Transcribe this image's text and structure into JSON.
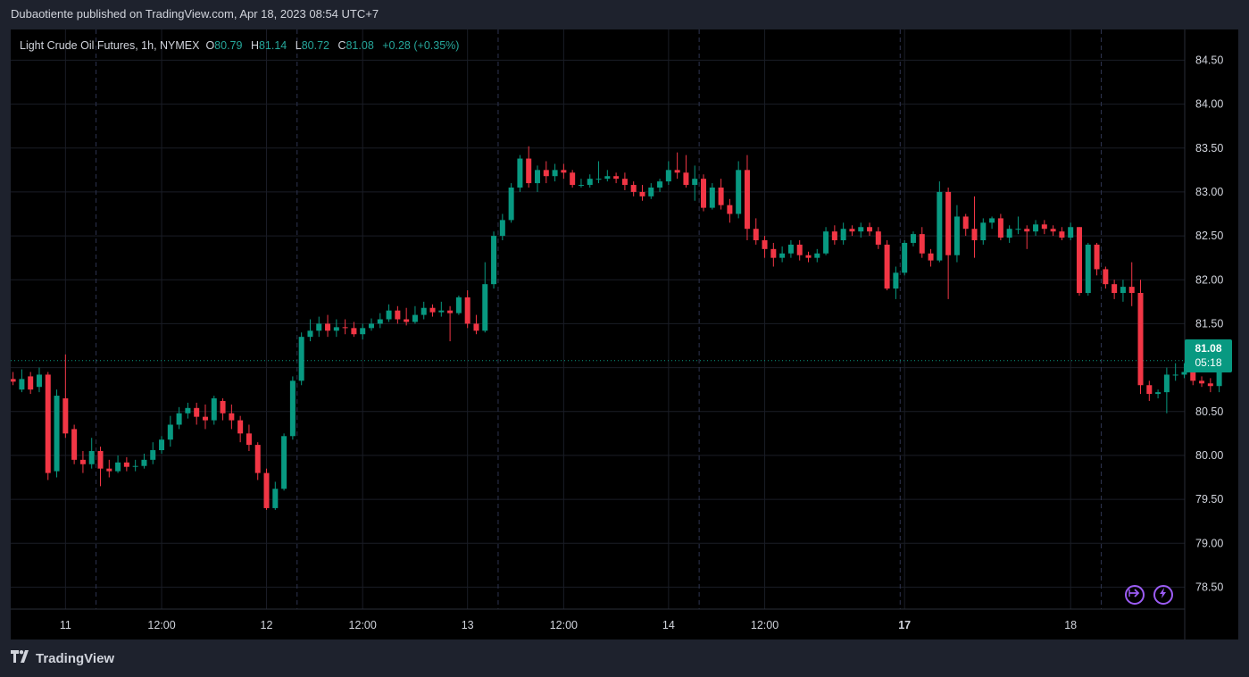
{
  "header": {
    "published_by": "Dubaotiente published on TradingView.com, Apr 18, 2023 08:54 UTC+7"
  },
  "legend": {
    "symbol": "Light Crude Oil Futures, 1h, NYMEX",
    "open_label": "O",
    "open": "80.79",
    "high_label": "H",
    "high": "81.14",
    "low_label": "L",
    "low": "80.72",
    "close_label": "C",
    "close": "81.08",
    "change": "+0.28 (+0.35%)"
  },
  "price_badge": {
    "price": "81.08",
    "countdown": "05:18"
  },
  "footer": {
    "brand": "TradingView"
  },
  "colors": {
    "up": "#089981",
    "down": "#f23645",
    "background": "#000000",
    "frame": "#1e222d",
    "grid": "#1a1d26",
    "text": "#d1d4dc",
    "accent": "#9c5cf5"
  },
  "icons": {
    "replay": "replay-icon",
    "lightning": "lightning-icon",
    "logo": "tradingview-logo-icon"
  },
  "chart_data": {
    "type": "candlestick",
    "title": "Light Crude Oil Futures, 1h, NYMEX",
    "y_ticks": [
      "84.50",
      "84.00",
      "83.50",
      "83.00",
      "82.50",
      "82.00",
      "81.50",
      "81.00",
      "80.50",
      "80.00",
      "79.50",
      "79.00",
      "78.50"
    ],
    "ylim": [
      78.25,
      84.85
    ],
    "x_ticks": [
      {
        "label": "11",
        "index": 6,
        "bold": false
      },
      {
        "label": "12:00",
        "index": 17,
        "bold": false
      },
      {
        "label": "12",
        "index": 29,
        "bold": false
      },
      {
        "label": "12:00",
        "index": 40,
        "bold": false
      },
      {
        "label": "13",
        "index": 52,
        "bold": false
      },
      {
        "label": "12:00",
        "index": 63,
        "bold": false
      },
      {
        "label": "14",
        "index": 75,
        "bold": false
      },
      {
        "label": "12:00",
        "index": 86,
        "bold": false
      },
      {
        "label": "17",
        "index": 102,
        "bold": true
      },
      {
        "label": "18",
        "index": 121,
        "bold": false
      }
    ],
    "session_breaks": [
      9.5,
      32.5,
      55.5,
      78.5,
      101.5,
      124.5
    ],
    "grid": true,
    "last_price": 81.08,
    "candles": [
      [
        80.87,
        80.84,
        80.95,
        80.8
      ],
      [
        80.75,
        80.87,
        80.98,
        80.72
      ],
      [
        80.9,
        80.75,
        80.95,
        80.7
      ],
      [
        80.78,
        80.92,
        81.0,
        80.72
      ],
      [
        80.92,
        79.8,
        80.95,
        79.72
      ],
      [
        79.82,
        80.68,
        80.75,
        79.75
      ],
      [
        80.65,
        80.25,
        81.15,
        80.2
      ],
      [
        80.3,
        79.95,
        80.35,
        79.9
      ],
      [
        79.95,
        79.9,
        80.05,
        79.8
      ],
      [
        79.9,
        80.05,
        80.2,
        79.85
      ],
      [
        80.05,
        79.85,
        80.1,
        79.65
      ],
      [
        79.85,
        79.82,
        79.95,
        79.75
      ],
      [
        79.82,
        79.92,
        80.0,
        79.8
      ],
      [
        79.92,
        79.87,
        79.98,
        79.82
      ],
      [
        79.87,
        79.88,
        79.95,
        79.82
      ],
      [
        79.88,
        79.95,
        80.02,
        79.85
      ],
      [
        79.95,
        80.06,
        80.15,
        79.9
      ],
      [
        80.06,
        80.18,
        80.22,
        80.02
      ],
      [
        80.18,
        80.35,
        80.45,
        80.1
      ],
      [
        80.35,
        80.48,
        80.55,
        80.3
      ],
      [
        80.48,
        80.54,
        80.6,
        80.42
      ],
      [
        80.54,
        80.44,
        80.6,
        80.35
      ],
      [
        80.44,
        80.4,
        80.58,
        80.3
      ],
      [
        80.4,
        80.65,
        80.68,
        80.35
      ],
      [
        80.62,
        80.48,
        80.65,
        80.4
      ],
      [
        80.48,
        80.4,
        80.58,
        80.3
      ],
      [
        80.4,
        80.25,
        80.45,
        80.15
      ],
      [
        80.25,
        80.12,
        80.35,
        80.05
      ],
      [
        80.12,
        79.8,
        80.15,
        79.72
      ],
      [
        79.8,
        79.4,
        79.85,
        79.38
      ],
      [
        79.4,
        79.62,
        79.7,
        79.38
      ],
      [
        79.62,
        80.22,
        80.25,
        79.6
      ],
      [
        80.22,
        80.85,
        80.9,
        80.18
      ],
      [
        80.85,
        81.35,
        81.4,
        80.8
      ],
      [
        81.35,
        81.42,
        81.55,
        81.3
      ],
      [
        81.42,
        81.5,
        81.58,
        81.35
      ],
      [
        81.5,
        81.42,
        81.6,
        81.35
      ],
      [
        81.42,
        81.46,
        81.55,
        81.35
      ],
      [
        81.46,
        81.45,
        81.55,
        81.38
      ],
      [
        81.45,
        81.38,
        81.52,
        81.35
      ],
      [
        81.38,
        81.45,
        81.5,
        81.32
      ],
      [
        81.45,
        81.5,
        81.56,
        81.42
      ],
      [
        81.5,
        81.55,
        81.62,
        81.45
      ],
      [
        81.55,
        81.65,
        81.72,
        81.52
      ],
      [
        81.65,
        81.55,
        81.7,
        81.5
      ],
      [
        81.55,
        81.52,
        81.68,
        81.48
      ],
      [
        81.52,
        81.6,
        81.7,
        81.5
      ],
      [
        81.6,
        81.68,
        81.75,
        81.55
      ],
      [
        81.68,
        81.63,
        81.72,
        81.58
      ],
      [
        81.63,
        81.65,
        81.75,
        81.58
      ],
      [
        81.65,
        81.62,
        81.7,
        81.3
      ],
      [
        81.62,
        81.8,
        81.82,
        81.6
      ],
      [
        81.8,
        81.5,
        81.88,
        81.45
      ],
      [
        81.5,
        81.42,
        81.6,
        81.38
      ],
      [
        81.42,
        81.95,
        82.2,
        81.4
      ],
      [
        81.95,
        82.5,
        82.55,
        81.9
      ],
      [
        82.5,
        82.68,
        82.75,
        82.45
      ],
      [
        82.68,
        83.05,
        83.1,
        82.65
      ],
      [
        83.05,
        83.38,
        83.42,
        83.0
      ],
      [
        83.38,
        83.1,
        83.52,
        83.05
      ],
      [
        83.1,
        83.25,
        83.3,
        83.0
      ],
      [
        83.25,
        83.18,
        83.35,
        83.1
      ],
      [
        83.18,
        83.25,
        83.32,
        83.12
      ],
      [
        83.25,
        83.22,
        83.32,
        83.15
      ],
      [
        83.22,
        83.08,
        83.25,
        83.05
      ],
      [
        83.08,
        83.08,
        83.15,
        83.05
      ],
      [
        83.08,
        83.15,
        83.2,
        83.05
      ],
      [
        83.15,
        83.15,
        83.35,
        83.1
      ],
      [
        83.15,
        83.18,
        83.25,
        83.12
      ],
      [
        83.18,
        83.15,
        83.22,
        83.1
      ],
      [
        83.15,
        83.08,
        83.22,
        83.02
      ],
      [
        83.08,
        83.0,
        83.12,
        82.95
      ],
      [
        83.0,
        82.95,
        83.08,
        82.9
      ],
      [
        82.95,
        83.05,
        83.1,
        82.92
      ],
      [
        83.05,
        83.12,
        83.15,
        83.0
      ],
      [
        83.12,
        83.25,
        83.35,
        83.08
      ],
      [
        83.25,
        83.22,
        83.45,
        83.15
      ],
      [
        83.22,
        83.08,
        83.42,
        83.05
      ],
      [
        83.08,
        83.15,
        83.3,
        82.9
      ],
      [
        83.15,
        82.82,
        83.2,
        82.78
      ],
      [
        82.82,
        83.05,
        83.1,
        82.8
      ],
      [
        83.05,
        82.85,
        83.15,
        82.8
      ],
      [
        82.85,
        82.75,
        82.92,
        82.65
      ],
      [
        82.75,
        83.25,
        83.35,
        82.7
      ],
      [
        83.25,
        82.58,
        83.42,
        82.45
      ],
      [
        82.58,
        82.45,
        82.7,
        82.4
      ],
      [
        82.45,
        82.35,
        82.5,
        82.25
      ],
      [
        82.35,
        82.25,
        82.42,
        82.15
      ],
      [
        82.25,
        82.3,
        82.38,
        82.2
      ],
      [
        82.3,
        82.4,
        82.45,
        82.25
      ],
      [
        82.4,
        82.28,
        82.45,
        82.22
      ],
      [
        82.28,
        82.25,
        82.32,
        82.2
      ],
      [
        82.25,
        82.3,
        82.35,
        82.2
      ],
      [
        82.3,
        82.55,
        82.6,
        82.28
      ],
      [
        82.55,
        82.45,
        82.62,
        82.4
      ],
      [
        82.45,
        82.58,
        82.65,
        82.4
      ],
      [
        82.58,
        82.55,
        82.62,
        82.5
      ],
      [
        82.55,
        82.6,
        82.65,
        82.48
      ],
      [
        82.6,
        82.55,
        82.65,
        82.5
      ],
      [
        82.55,
        82.4,
        82.6,
        82.35
      ],
      [
        82.4,
        81.9,
        82.45,
        81.88
      ],
      [
        81.9,
        82.08,
        82.15,
        81.78
      ],
      [
        82.08,
        82.42,
        82.45,
        82.05
      ],
      [
        82.42,
        82.52,
        82.55,
        82.38
      ],
      [
        82.52,
        82.3,
        82.6,
        82.25
      ],
      [
        82.3,
        82.22,
        82.35,
        82.15
      ],
      [
        82.22,
        83.0,
        83.12,
        82.2
      ],
      [
        83.0,
        82.28,
        83.05,
        81.78
      ],
      [
        82.28,
        82.72,
        82.85,
        82.2
      ],
      [
        82.72,
        82.58,
        82.75,
        82.5
      ],
      [
        82.58,
        82.45,
        82.95,
        82.25
      ],
      [
        82.45,
        82.65,
        82.7,
        82.4
      ],
      [
        82.65,
        82.7,
        82.72,
        82.58
      ],
      [
        82.7,
        82.48,
        82.75,
        82.45
      ],
      [
        82.48,
        82.58,
        82.62,
        82.42
      ],
      [
        82.58,
        82.58,
        82.72,
        82.52
      ],
      [
        82.58,
        82.55,
        82.62,
        82.35
      ],
      [
        82.55,
        82.63,
        82.68,
        82.5
      ],
      [
        82.63,
        82.58,
        82.68,
        82.52
      ],
      [
        82.58,
        82.55,
        82.62,
        82.5
      ],
      [
        82.55,
        82.48,
        82.6,
        82.45
      ],
      [
        82.48,
        82.6,
        82.65,
        82.45
      ],
      [
        82.6,
        81.85,
        82.6,
        81.82
      ],
      [
        81.85,
        82.4,
        82.42,
        81.82
      ],
      [
        82.4,
        82.12,
        82.42,
        82.05
      ],
      [
        82.12,
        81.95,
        82.15,
        81.9
      ],
      [
        81.95,
        81.85,
        82.0,
        81.78
      ],
      [
        81.85,
        81.92,
        82.0,
        81.75
      ],
      [
        81.92,
        81.85,
        82.2,
        81.7
      ],
      [
        81.85,
        80.8,
        82.0,
        80.7
      ],
      [
        80.8,
        80.7,
        80.85,
        80.62
      ],
      [
        80.7,
        80.72,
        80.75,
        80.65
      ],
      [
        80.72,
        80.92,
        81.0,
        80.48
      ],
      [
        80.92,
        80.92,
        81.05,
        80.85
      ],
      [
        80.92,
        80.95,
        81.05,
        80.88
      ],
      [
        80.95,
        80.85,
        81.0,
        80.8
      ],
      [
        80.85,
        80.82,
        80.9,
        80.78
      ],
      [
        80.82,
        80.79,
        80.88,
        80.72
      ],
      [
        80.79,
        81.08,
        81.14,
        80.72
      ]
    ]
  }
}
